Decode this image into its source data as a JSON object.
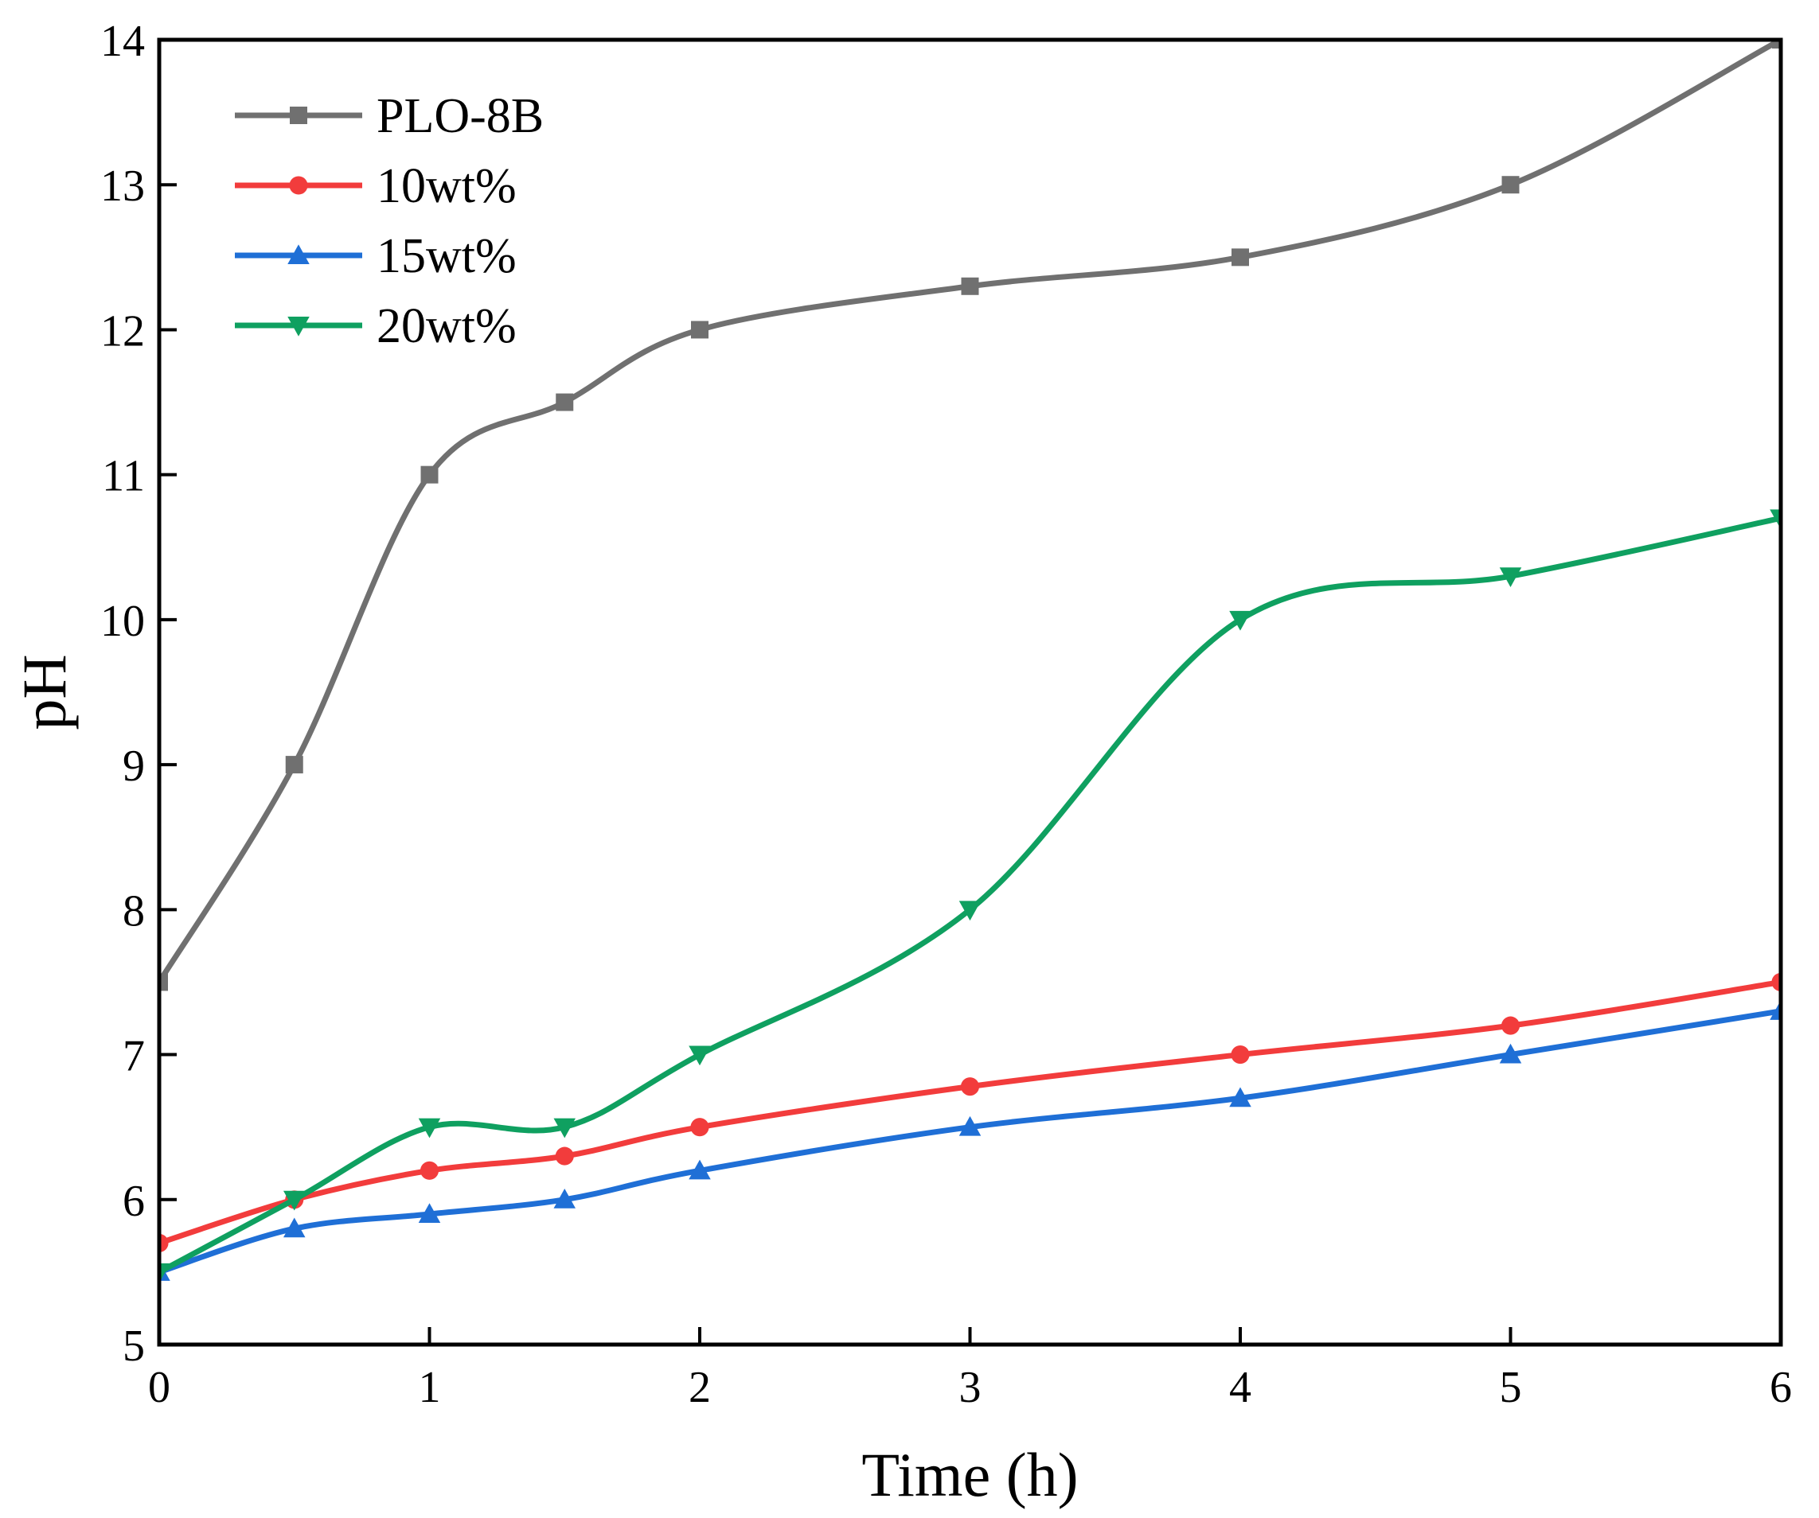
{
  "chart_data": {
    "type": "line",
    "title": "",
    "xlabel": "Time (h)",
    "ylabel": "pH",
    "xlim": [
      0,
      6
    ],
    "ylim": [
      5,
      14
    ],
    "xticks": [
      0,
      1,
      2,
      3,
      4,
      5,
      6
    ],
    "yticks": [
      5,
      6,
      7,
      8,
      9,
      10,
      11,
      12,
      13,
      14
    ],
    "grid": false,
    "legend_position": "top-left",
    "series": [
      {
        "name": "PLO-8B",
        "color": "#707070",
        "marker": "square",
        "x": [
          0,
          0.5,
          1,
          1.5,
          2,
          3,
          4,
          5,
          6
        ],
        "y": [
          7.5,
          9.0,
          11.0,
          11.5,
          12.0,
          12.3,
          12.5,
          13.0,
          14.0
        ]
      },
      {
        "name": "10wt%",
        "color": "#f23c3c",
        "marker": "circle",
        "x": [
          0,
          0.5,
          1,
          1.5,
          2,
          3,
          4,
          5,
          6
        ],
        "y": [
          5.7,
          6.0,
          6.2,
          6.3,
          6.5,
          6.78,
          7.0,
          7.2,
          7.5
        ]
      },
      {
        "name": "15wt%",
        "color": "#1f6fd6",
        "marker": "triangle-up",
        "x": [
          0,
          0.5,
          1,
          1.5,
          2,
          3,
          4,
          5,
          6
        ],
        "y": [
          5.5,
          5.8,
          5.9,
          6.0,
          6.2,
          6.5,
          6.7,
          7.0,
          7.3
        ]
      },
      {
        "name": "20wt%",
        "color": "#0fa060",
        "marker": "triangle-down",
        "x": [
          0,
          0.5,
          1,
          1.5,
          2,
          3,
          4,
          5,
          6
        ],
        "y": [
          5.5,
          6.0,
          6.5,
          6.5,
          7.0,
          8.0,
          10.0,
          10.3,
          10.7
        ]
      }
    ]
  }
}
